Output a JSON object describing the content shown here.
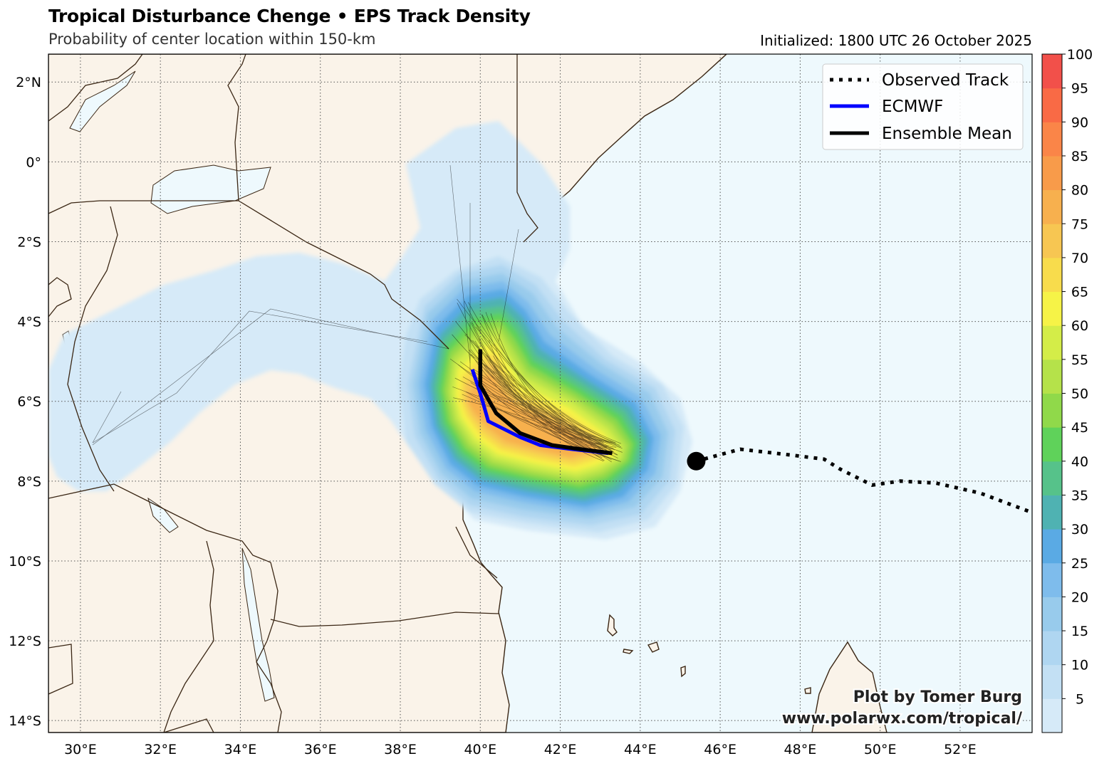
{
  "header": {
    "title": "Tropical Disturbance Chenge • EPS Track Density",
    "subtitle": "Probability of center location within 150-km",
    "initialized": "Initialized: 1800 UTC 26 October 2025"
  },
  "credit": {
    "line1": "Plot by Tomer Burg",
    "line2": "www.polarwx.com/tropical/"
  },
  "legend": [
    {
      "label": "Observed Track",
      "style": "dotted",
      "color": "#000000"
    },
    {
      "label": "ECMWF",
      "style": "solid",
      "color": "#0000ff"
    },
    {
      "label": "Ensemble Mean",
      "style": "solid",
      "color": "#000000"
    }
  ],
  "map": {
    "lon_range": [
      29.2,
      53.8
    ],
    "lat_range": [
      -14.3,
      2.7
    ],
    "lon_ticks": [
      {
        "value": 30,
        "label": "30°E"
      },
      {
        "value": 32,
        "label": "32°E"
      },
      {
        "value": 34,
        "label": "34°E"
      },
      {
        "value": 36,
        "label": "36°E"
      },
      {
        "value": 38,
        "label": "38°E"
      },
      {
        "value": 40,
        "label": "40°E"
      },
      {
        "value": 42,
        "label": "42°E"
      },
      {
        "value": 44,
        "label": "44°E"
      },
      {
        "value": 46,
        "label": "46°E"
      },
      {
        "value": 48,
        "label": "48°E"
      },
      {
        "value": 50,
        "label": "50°E"
      },
      {
        "value": 52,
        "label": "52°E"
      }
    ],
    "lat_ticks": [
      {
        "value": 2,
        "label": "2°N"
      },
      {
        "value": 0,
        "label": "0°"
      },
      {
        "value": -2,
        "label": "2°S"
      },
      {
        "value": -4,
        "label": "4°S"
      },
      {
        "value": -6,
        "label": "6°S"
      },
      {
        "value": -8,
        "label": "8°S"
      },
      {
        "value": -10,
        "label": "10°S"
      },
      {
        "value": -12,
        "label": "12°S"
      },
      {
        "value": -14,
        "label": "14°S"
      }
    ],
    "grid": "dotted",
    "colors": {
      "land": "#faf3e9",
      "ocean": "#eef9fd",
      "coast": "#3a2614",
      "grid": "#555555"
    }
  },
  "colorbar": {
    "ticks": [
      5,
      10,
      15,
      20,
      25,
      30,
      35,
      40,
      45,
      50,
      55,
      60,
      65,
      70,
      75,
      80,
      85,
      90,
      95,
      100
    ],
    "bins": [
      {
        "from": 0,
        "to": 5,
        "color": "#d6eaf8"
      },
      {
        "from": 5,
        "to": 10,
        "color": "#c3e0f4"
      },
      {
        "from": 10,
        "to": 15,
        "color": "#afd6f1"
      },
      {
        "from": 15,
        "to": 20,
        "color": "#98cbec"
      },
      {
        "from": 20,
        "to": 25,
        "color": "#7ebcec"
      },
      {
        "from": 25,
        "to": 30,
        "color": "#5aaae4"
      },
      {
        "from": 30,
        "to": 35,
        "color": "#4fb2b2"
      },
      {
        "from": 35,
        "to": 40,
        "color": "#56c28a"
      },
      {
        "from": 40,
        "to": 45,
        "color": "#5fd25a"
      },
      {
        "from": 45,
        "to": 50,
        "color": "#90d94a"
      },
      {
        "from": 50,
        "to": 55,
        "color": "#b5e24a"
      },
      {
        "from": 55,
        "to": 60,
        "color": "#d4ed48"
      },
      {
        "from": 60,
        "to": 65,
        "color": "#f6f347"
      },
      {
        "from": 65,
        "to": 70,
        "color": "#f8dc4c"
      },
      {
        "from": 70,
        "to": 75,
        "color": "#f7c652"
      },
      {
        "from": 75,
        "to": 80,
        "color": "#f7b04e"
      },
      {
        "from": 80,
        "to": 85,
        "color": "#f89b4a"
      },
      {
        "from": 85,
        "to": 90,
        "color": "#fa8548"
      },
      {
        "from": 90,
        "to": 95,
        "color": "#f96a45"
      },
      {
        "from": 95,
        "to": 100,
        "color": "#f2504a"
      }
    ]
  },
  "tracks": {
    "observed": [
      [
        53.7,
        -8.75
      ],
      [
        52.5,
        -8.3
      ],
      [
        51.4,
        -8.05
      ],
      [
        50.5,
        -8.0
      ],
      [
        49.8,
        -8.1
      ],
      [
        49.0,
        -7.7
      ],
      [
        48.6,
        -7.45
      ],
      [
        47.8,
        -7.35
      ],
      [
        46.5,
        -7.2
      ],
      [
        45.4,
        -7.5
      ]
    ],
    "current_position": [
      45.4,
      -7.5
    ],
    "ecmwf": [
      [
        39.8,
        -5.2
      ],
      [
        40.0,
        -5.8
      ],
      [
        40.2,
        -6.5
      ],
      [
        41.0,
        -6.9
      ],
      [
        41.5,
        -7.1
      ],
      [
        42.3,
        -7.2
      ],
      [
        43.2,
        -7.3
      ]
    ],
    "ensemble_mean": [
      [
        40.0,
        -4.7
      ],
      [
        40.0,
        -5.6
      ],
      [
        40.4,
        -6.3
      ],
      [
        41.0,
        -6.8
      ],
      [
        41.8,
        -7.1
      ],
      [
        42.5,
        -7.2
      ],
      [
        43.3,
        -7.3
      ]
    ]
  }
}
